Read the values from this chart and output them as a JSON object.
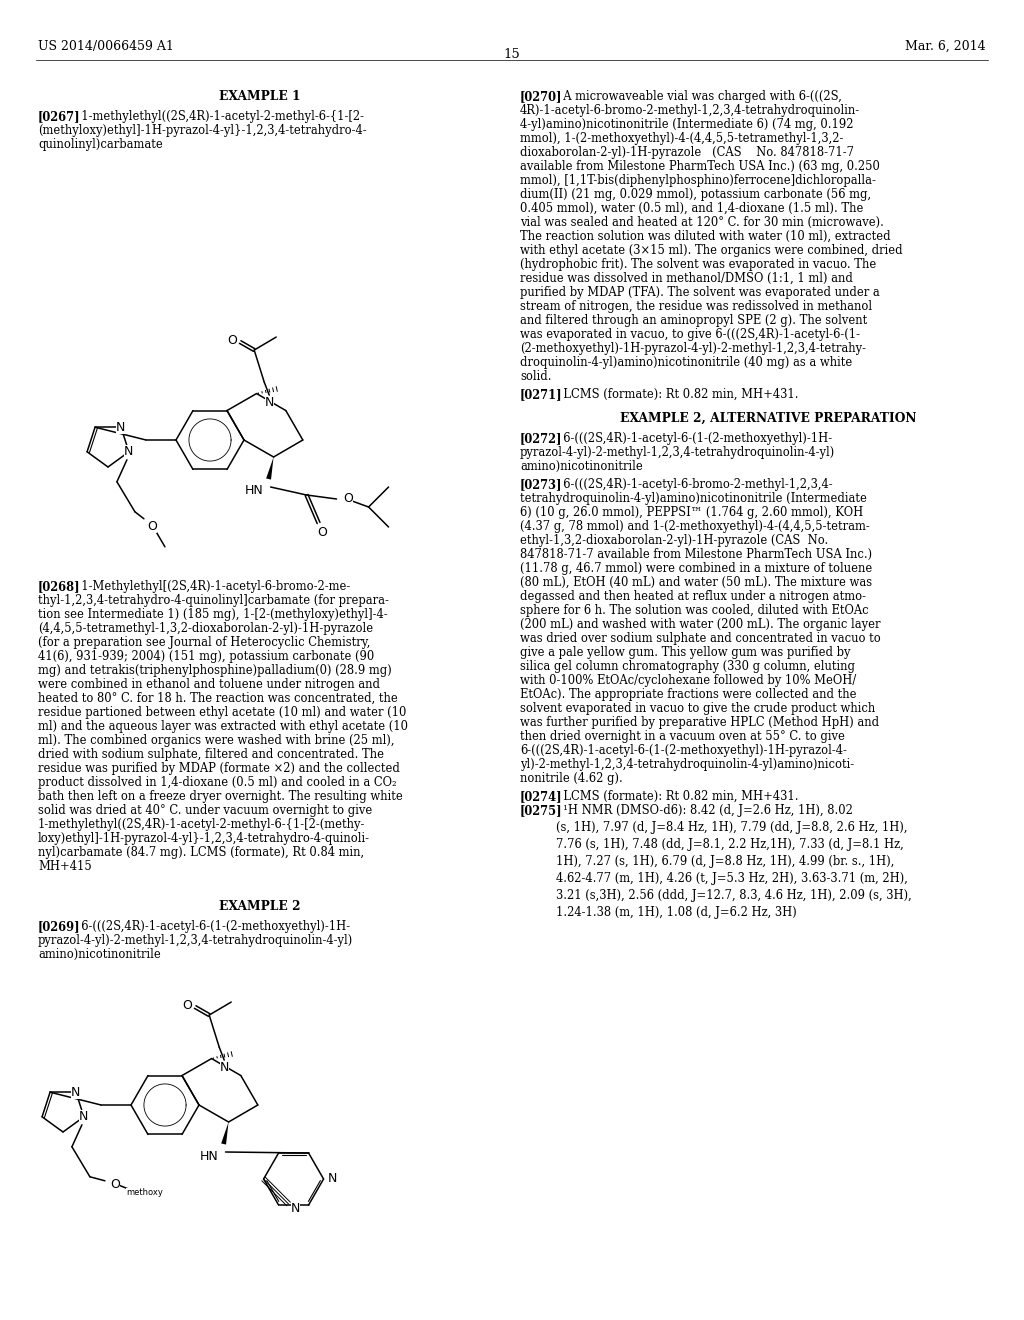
{
  "bg": "#ffffff",
  "header_left": "US 2014/0066459 A1",
  "header_right": "Mar. 6, 2014",
  "page_num": "15",
  "col_divider": 0.495
}
